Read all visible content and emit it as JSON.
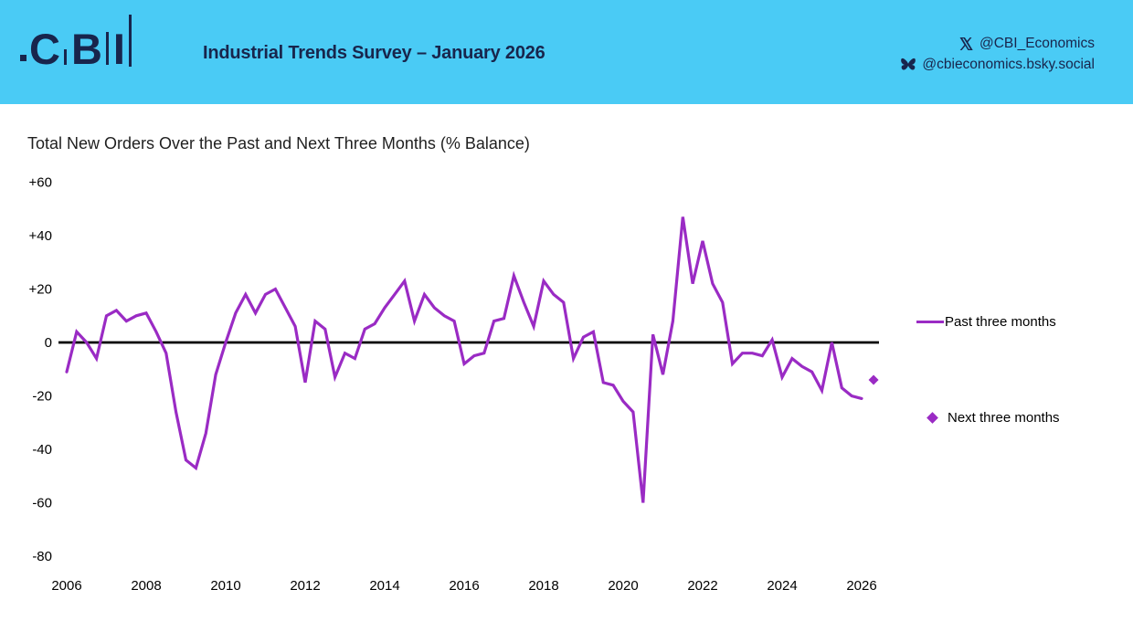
{
  "header": {
    "logo_text": "CBI",
    "logo_letters": [
      "C",
      "B",
      "I"
    ],
    "title": "Industrial Trends Survey – January 2026",
    "social": {
      "twitter_icon": "x-logo-icon",
      "twitter_handle": "@CBI_Economics",
      "bluesky_icon": "butterfly-icon",
      "bluesky_handle": "@cbieconomics.bsky.social"
    },
    "colors": {
      "background": "#4ACBF5",
      "navy": "#18254C"
    }
  },
  "chart_data": {
    "type": "line",
    "title": "Total New Orders Over the Past and Next Three Months (% Balance)",
    "x_tick_labels": [
      "2006",
      "2008",
      "2010",
      "2012",
      "2014",
      "2016",
      "2018",
      "2020",
      "2022",
      "2024",
      "2026"
    ],
    "y_tick_labels": [
      "+60",
      "+40",
      "+20",
      "0",
      "-20",
      "-40",
      "-60",
      "-80"
    ],
    "y_tick_values": [
      60,
      40,
      20,
      0,
      -20,
      -40,
      -60,
      -80
    ],
    "ylim": [
      -80,
      60
    ],
    "xlim": [
      2005.8,
      2026.6
    ],
    "grid": false,
    "zero_line": true,
    "legend_position": "right",
    "legend": [
      "Past three months",
      "Next three months"
    ],
    "colors": {
      "line": "#9A2BC4",
      "diamond": "#9A2BC4",
      "axis": "#000000"
    },
    "series": [
      {
        "name": "Past three months",
        "type": "line",
        "color": "#9A2BC4",
        "start_year": 2006,
        "points_per_year": 4,
        "values": [
          -11,
          4,
          0,
          -6,
          10,
          12,
          8,
          10,
          11,
          4,
          -4,
          -26,
          -44,
          -47,
          -34,
          -12,
          0,
          11,
          18,
          11,
          18,
          20,
          13,
          6,
          -15,
          8,
          5,
          -13,
          -4,
          -6,
          5,
          7,
          13,
          18,
          23,
          8,
          18,
          13,
          10,
          8,
          -8,
          -5,
          -4,
          8,
          9,
          25,
          15,
          6,
          23,
          18,
          15,
          -6,
          2,
          4,
          -15,
          -16,
          -22,
          -26,
          -60,
          3,
          -12,
          8,
          47,
          22,
          38,
          22,
          15,
          -8,
          -4,
          -4,
          -5,
          1,
          -13,
          -6,
          -9,
          -11,
          -18,
          0,
          -17,
          -20,
          -21
        ]
      },
      {
        "name": "Next three months",
        "type": "scatter",
        "marker": "diamond",
        "color": "#9A2BC4",
        "x": [
          2026.3
        ],
        "values": [
          -14
        ]
      }
    ]
  }
}
